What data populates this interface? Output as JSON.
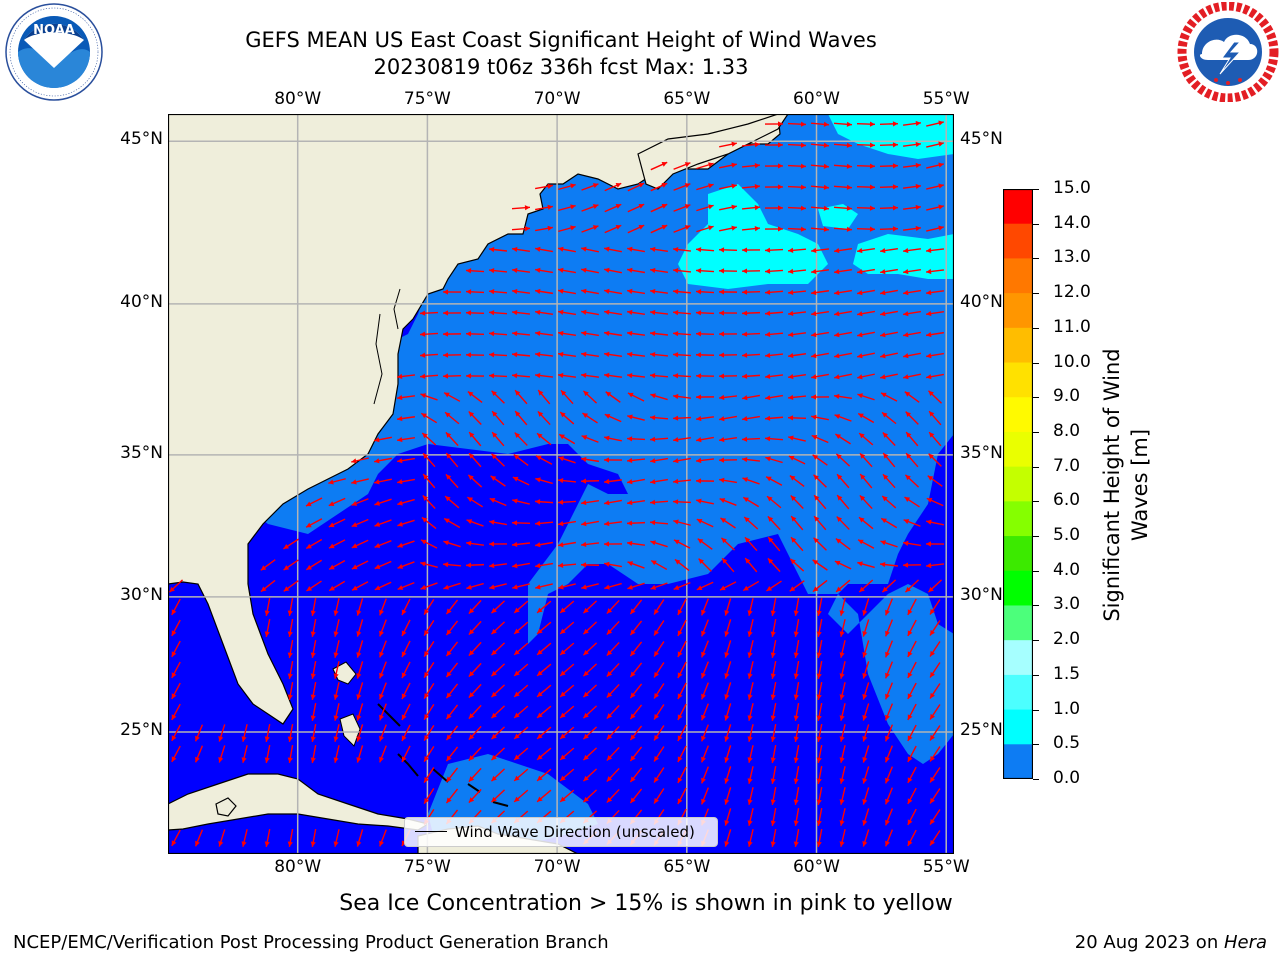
{
  "title": {
    "line1": "GEFS MEAN US East Coast Significant Height of Wind Waves",
    "line2": "20230819 t06z 336h fcst   Max: 1.33"
  },
  "logos": {
    "left": {
      "icon": "noaa-logo",
      "text": "NOAA",
      "ring_text": "NATIONAL OCEANIC AND ATMOSPHERIC ADMINISTRATION · U.S. DEPARTMENT OF COMMERCE"
    },
    "right": {
      "icon": "nws-logo",
      "ring_text": "NATIONAL WEATHER SERVICE"
    }
  },
  "map": {
    "lon_labels": [
      "80°W",
      "75°W",
      "70°W",
      "65°W",
      "60°W",
      "55°W"
    ],
    "lat_labels": [
      "45°N",
      "40°N",
      "35°N",
      "30°N",
      "25°N"
    ],
    "lon_values": [
      -80,
      -75,
      -70,
      -65,
      -60,
      -55
    ],
    "lat_values": [
      45,
      40,
      35,
      30,
      25
    ],
    "lon_range": [
      -85,
      -54.7
    ],
    "lat_range": [
      20.3,
      45.8
    ],
    "legend": "Wind Wave Direction (unscaled)",
    "colors": {
      "land": "#efeedb",
      "ocean_0": "#0000ff",
      "ocean_05": "#0d7cf3",
      "ocean_10": "#00ffff",
      "arrow": "#ff0000",
      "grid": "#b4b4b4"
    }
  },
  "colorbar": {
    "label": "Significant Height of Wind Waves [m]",
    "ticks": [
      "15.0",
      "14.0",
      "13.0",
      "12.0",
      "11.0",
      "10.0",
      "9.0",
      "8.0",
      "7.0",
      "6.0",
      "5.0",
      "4.0",
      "3.0",
      "2.0",
      "1.5",
      "1.0",
      "0.5",
      "0.0"
    ],
    "colors_top_to_bottom": [
      "#ff0000",
      "#ff2400",
      "#ff4800",
      "#ff7800",
      "#ff9600",
      "#ffbd00",
      "#ffe100",
      "#fffa00",
      "#eaff00",
      "#c4ff00",
      "#85ff00",
      "#3cea00",
      "#00ff00",
      "#4cff7b",
      "#a6ffff",
      "#4cffff",
      "#00ffff",
      "#0d7cf3",
      "#0000ff"
    ]
  },
  "footer": {
    "note": "Sea Ice Concentration > 15% is shown in pink to yellow",
    "left": "NCEP/EMC/Verification Post Processing Product Generation Branch",
    "right_prefix": "20 Aug 2023 on ",
    "right_host": "Hera"
  }
}
